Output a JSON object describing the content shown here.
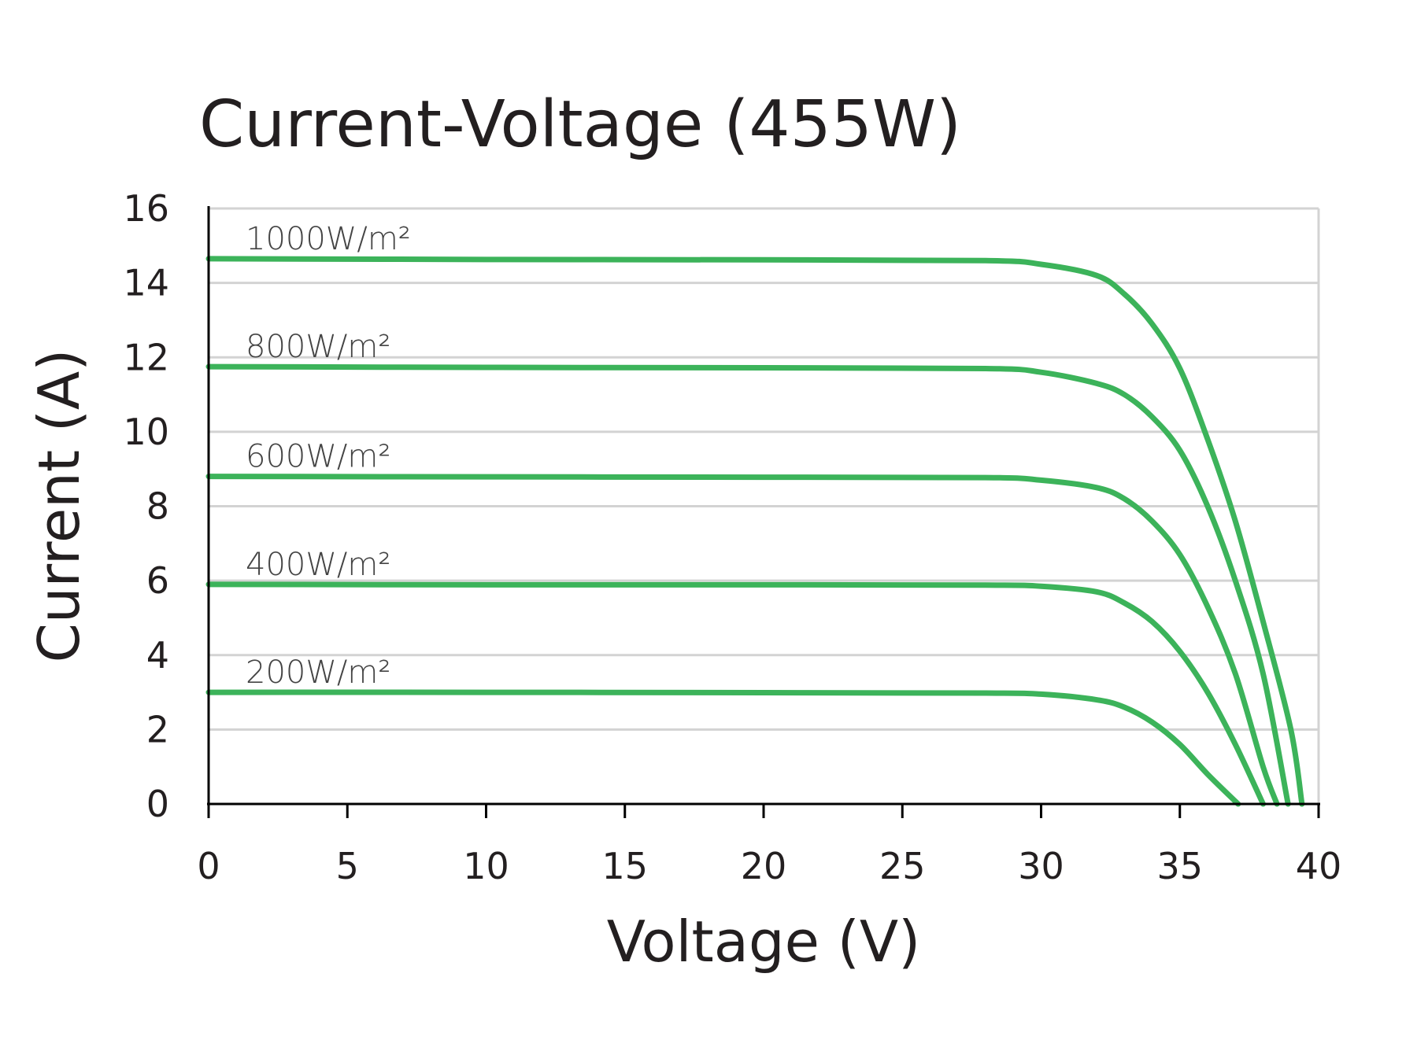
{
  "chart_data": {
    "type": "line",
    "title": "Current-Voltage  (455W)",
    "x_label": "Voltage (V)",
    "y_label": "Current (A)",
    "xlim": [
      0,
      40
    ],
    "ylim": [
      0,
      16
    ],
    "xticks": [
      0,
      5,
      10,
      15,
      20,
      25,
      30,
      35,
      40
    ],
    "yticks": [
      0,
      2,
      4,
      6,
      8,
      10,
      12,
      14,
      16
    ],
    "grid": true,
    "series": [
      {
        "name": "1000W/m²",
        "color": "#3cb35a",
        "x": [
          0,
          10,
          20,
          28,
          30,
          32,
          33,
          34,
          35,
          36,
          37,
          38,
          39,
          39.4
        ],
        "values": [
          14.65,
          14.63,
          14.62,
          14.6,
          14.5,
          14.2,
          13.7,
          12.9,
          11.7,
          9.8,
          7.6,
          4.9,
          2.0,
          0
        ]
      },
      {
        "name": "800W/m²",
        "color": "#3cb35a",
        "x": [
          0,
          10,
          20,
          28,
          30,
          32,
          33,
          34,
          35,
          36,
          37,
          38,
          38.9
        ],
        "values": [
          11.75,
          11.73,
          11.72,
          11.7,
          11.6,
          11.3,
          11.0,
          10.4,
          9.5,
          8.0,
          6.0,
          3.5,
          0
        ]
      },
      {
        "name": "600W/m²",
        "color": "#3cb35a",
        "x": [
          0,
          10,
          20,
          28,
          30,
          32,
          33,
          34,
          35,
          36,
          37,
          38,
          38.5
        ],
        "values": [
          8.8,
          8.79,
          8.78,
          8.77,
          8.7,
          8.5,
          8.2,
          7.6,
          6.7,
          5.3,
          3.5,
          1.0,
          0
        ]
      },
      {
        "name": "400W/m²",
        "color": "#3cb35a",
        "x": [
          0,
          10,
          20,
          28,
          30,
          32,
          33,
          34,
          35,
          36,
          37,
          38
        ],
        "values": [
          5.9,
          5.89,
          5.89,
          5.88,
          5.85,
          5.7,
          5.4,
          4.9,
          4.1,
          3.0,
          1.6,
          0
        ]
      },
      {
        "name": "200W/m²",
        "color": "#3cb35a",
        "x": [
          0,
          10,
          20,
          28,
          30,
          32,
          33,
          34,
          35,
          36,
          37.1
        ],
        "values": [
          3.0,
          3.0,
          2.99,
          2.98,
          2.95,
          2.8,
          2.6,
          2.2,
          1.6,
          0.8,
          0
        ]
      }
    ]
  }
}
